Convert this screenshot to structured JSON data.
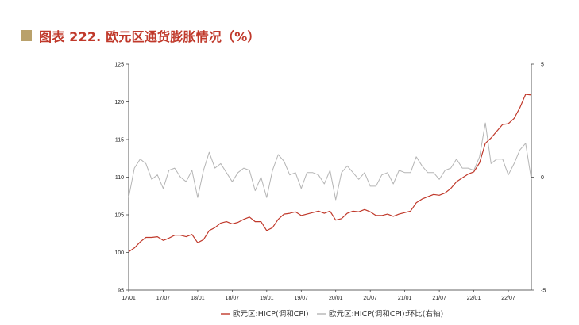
{
  "header": {
    "title": "图表 222. 欧元区通货膨胀情况（%）"
  },
  "colors": {
    "accent_square": "#b9a16b",
    "title": "#c0392b",
    "series_hicp": "#c0392b",
    "series_mom": "#b5b5b5"
  },
  "chart_data": {
    "type": "line",
    "left_axis": {
      "ylim": [
        95,
        125
      ],
      "ticks": [
        "95",
        "100",
        "105",
        "110",
        "115",
        "120",
        "125"
      ]
    },
    "right_axis": {
      "ylim": [
        -5,
        5
      ],
      "ticks": [
        "-5",
        "0",
        "5"
      ]
    },
    "x_ticks": [
      "17/01",
      "17/07",
      "18/01",
      "18/07",
      "19/01",
      "19/07",
      "20/01",
      "20/07",
      "21/01",
      "21/07",
      "22/01",
      "22/07"
    ],
    "x_tick_positions": [
      0,
      6,
      12,
      18,
      24,
      30,
      36,
      42,
      48,
      54,
      60,
      66
    ],
    "legend_position": "bottom",
    "series": [
      {
        "name": "欧元区:HICP(调和CPI)",
        "axis": "left",
        "values": [
          100.1,
          100.6,
          101.4,
          102.0,
          102.0,
          102.1,
          101.6,
          101.9,
          102.3,
          102.3,
          102.1,
          102.4,
          101.3,
          101.7,
          102.9,
          103.3,
          103.9,
          104.1,
          103.8,
          104.0,
          104.4,
          104.7,
          104.1,
          104.1,
          102.9,
          103.3,
          104.4,
          105.1,
          105.2,
          105.4,
          104.9,
          105.1,
          105.3,
          105.5,
          105.2,
          105.5,
          104.3,
          104.5,
          105.2,
          105.5,
          105.4,
          105.7,
          105.4,
          104.9,
          104.9,
          105.1,
          104.8,
          105.1,
          105.3,
          105.5,
          106.6,
          107.1,
          107.4,
          107.7,
          107.6,
          107.9,
          108.5,
          109.4,
          109.9,
          110.4,
          110.7,
          111.9,
          114.5,
          115.2,
          116.1,
          117.0,
          117.1,
          117.8,
          119.2,
          121.0,
          120.9
        ],
        "color": "#c0392b"
      },
      {
        "name": "欧元区:HICP(调和CPI):环比(右轴)",
        "axis": "right",
        "values": [
          -0.9,
          0.4,
          0.8,
          0.6,
          -0.1,
          0.1,
          -0.5,
          0.3,
          0.4,
          0.0,
          -0.2,
          0.3,
          -0.9,
          0.3,
          1.1,
          0.4,
          0.6,
          0.2,
          -0.2,
          0.2,
          0.4,
          0.3,
          -0.6,
          0.0,
          -0.9,
          0.3,
          1.0,
          0.7,
          0.1,
          0.2,
          -0.5,
          0.2,
          0.2,
          0.1,
          -0.3,
          0.3,
          -1.0,
          0.2,
          0.5,
          0.2,
          -0.1,
          0.2,
          -0.4,
          -0.4,
          0.1,
          0.2,
          -0.3,
          0.3,
          0.2,
          0.2,
          0.9,
          0.5,
          0.2,
          0.2,
          -0.1,
          0.3,
          0.4,
          0.8,
          0.4,
          0.4,
          0.3,
          0.9,
          2.4,
          0.6,
          0.8,
          0.8,
          0.1,
          0.6,
          1.2,
          1.5,
          -0.1
        ],
        "color": "#b5b5b5"
      }
    ]
  }
}
